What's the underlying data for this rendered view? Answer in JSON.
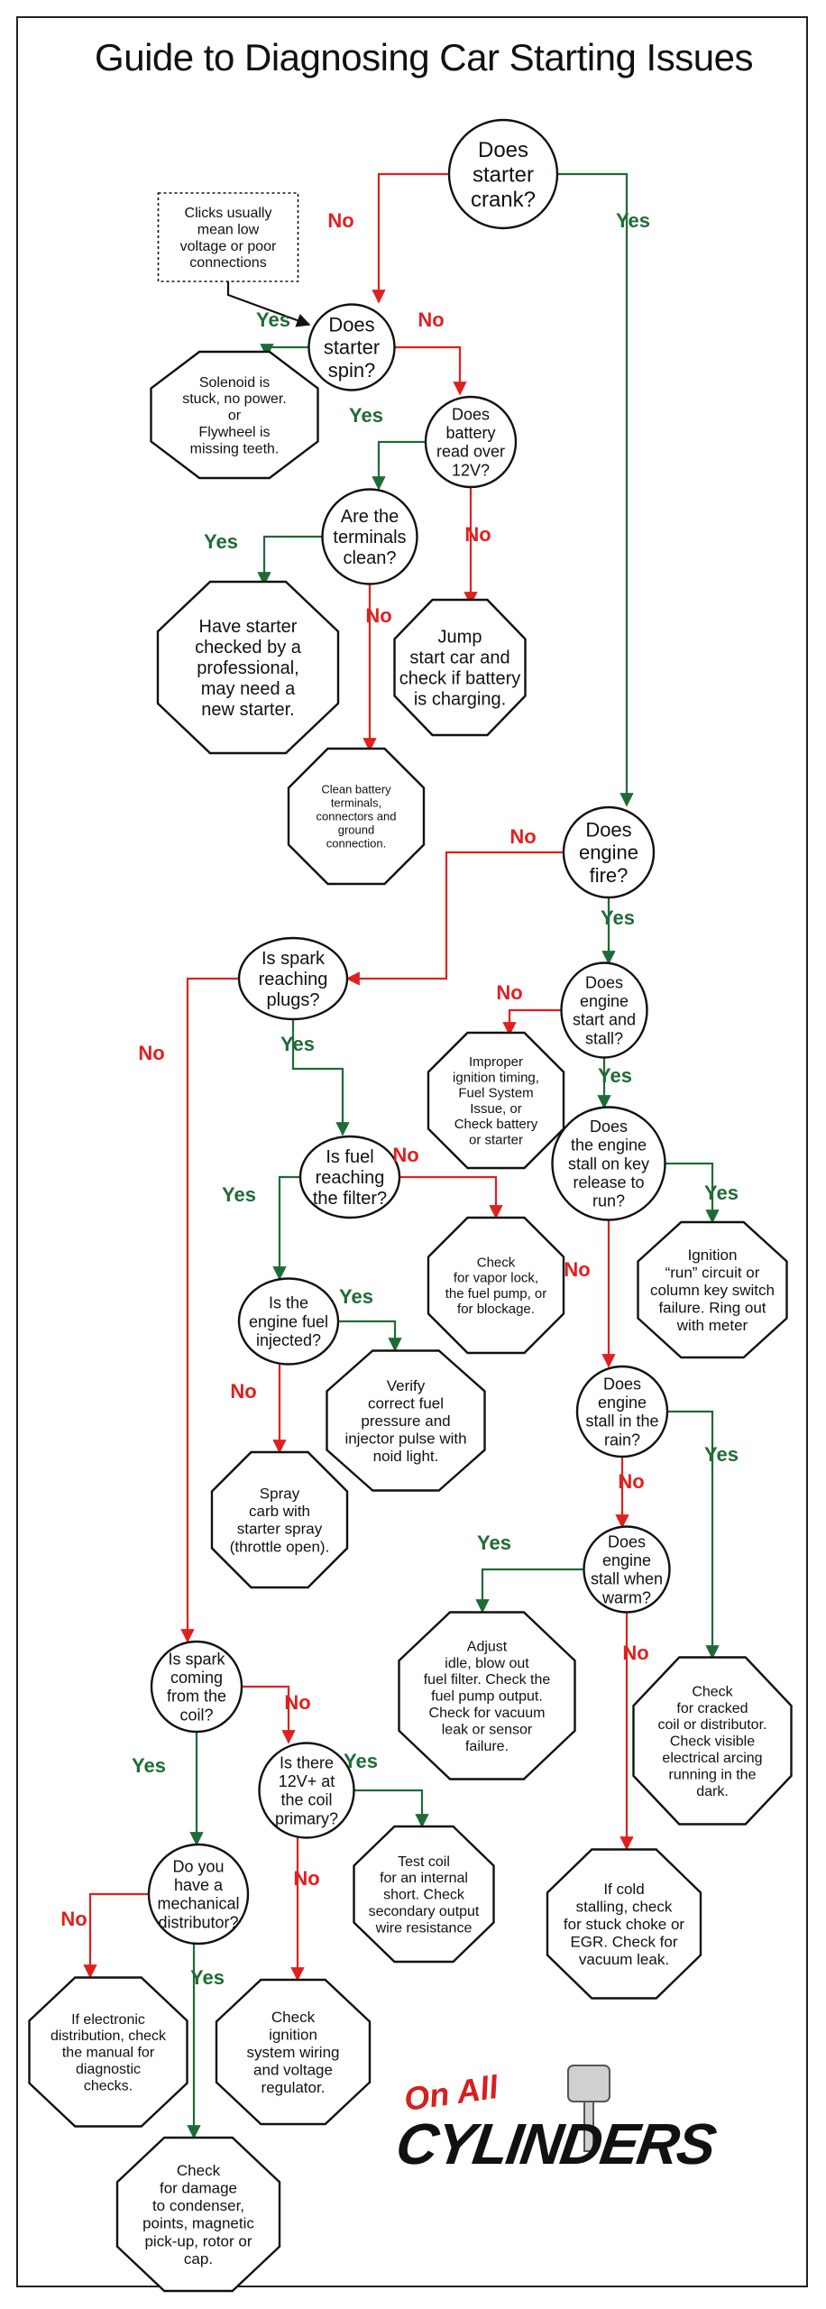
{
  "title": "Guide to Diagnosing Car Starting Issues",
  "nodes": {
    "crank": [
      "Does",
      "starter",
      "crank?"
    ],
    "clicks_note": [
      "Clicks usually",
      "mean low",
      "voltage or poor",
      "connections"
    ],
    "spin": [
      "Does",
      "starter",
      "spin?"
    ],
    "solenoid": [
      "Solenoid is",
      "stuck, no power.",
      "or",
      "Flywheel is",
      "missing teeth."
    ],
    "battery12": [
      "Does",
      "battery",
      "read over",
      "12V?"
    ],
    "terminals": [
      "Are the",
      "terminals",
      "clean?"
    ],
    "starter_check": [
      "Have starter",
      "checked by a",
      "professional,",
      "may need a",
      "new starter."
    ],
    "jump": [
      "Jump",
      "start car and",
      "check if battery",
      "is charging."
    ],
    "clean_battery": [
      "Clean battery",
      "terminals,",
      "connectors and",
      "ground",
      "connection."
    ],
    "fire": [
      "Does",
      "engine",
      "fire?"
    ],
    "spark_plugs": [
      "Is spark",
      "reaching",
      "plugs?"
    ],
    "start_stall": [
      "Does",
      "engine",
      "start and",
      "stall?"
    ],
    "improper": [
      "Improper",
      "ignition timing,",
      "Fuel System",
      "Issue, or",
      "Check battery",
      "or starter"
    ],
    "key_release": [
      "Does",
      "the engine",
      "stall on key",
      "release to",
      "run?"
    ],
    "fuel_filter": [
      "Is fuel",
      "reaching",
      "the filter?"
    ],
    "vapor": [
      "Check",
      "for vapor lock,",
      "the fuel pump, or",
      "for blockage."
    ],
    "ignition_run": [
      "Ignition",
      "“run” circuit or",
      "column key switch",
      "failure. Ring out",
      "with meter"
    ],
    "injected": [
      "Is the",
      "engine fuel",
      "injected?"
    ],
    "verify": [
      "Verify",
      "correct fuel",
      "pressure and",
      "injector pulse with",
      "noid light."
    ],
    "rain": [
      "Does",
      "engine",
      "stall in the",
      "rain?"
    ],
    "spray": [
      "Spray",
      "carb with",
      "starter spray",
      "(throttle open)."
    ],
    "warm": [
      "Does",
      "engine",
      "stall when",
      "warm?"
    ],
    "adjust": [
      "Adjust",
      "idle, blow out",
      "fuel filter.  Check the",
      "fuel pump output.",
      "Check for vacuum",
      "leak or sensor",
      "failure."
    ],
    "coil_spark": [
      "Is spark",
      "coming",
      "from the",
      "coil?"
    ],
    "cracked": [
      "Check",
      "for cracked",
      "coil or distributor.",
      "Check visible",
      "electrical arcing",
      "running in the",
      "dark."
    ],
    "coil12": [
      "Is there",
      "12V+ at",
      "the coil",
      "primary?"
    ],
    "test_coil": [
      "Test coil",
      "for an internal",
      "short.  Check",
      "secondary output",
      "wire resistance"
    ],
    "cold_stall": [
      "If cold",
      "stalling, check",
      "for stuck choke or",
      "EGR.  Check for",
      "vacuum leak."
    ],
    "mech_dist": [
      "Do you",
      "have a",
      "mechanical",
      "distributor?"
    ],
    "electronic": [
      "If electronic",
      "distribution, check",
      "the manual for",
      "diagnostic",
      "checks."
    ],
    "wiring": [
      "Check",
      "ignition",
      "system wiring",
      "and voltage",
      "regulator."
    ],
    "damage": [
      "Check",
      "for damage",
      "to condenser,",
      "points, magnetic",
      "pick-up, rotor or",
      "cap."
    ]
  },
  "edge_labels": {
    "yes": "Yes",
    "no": "No"
  },
  "logo": {
    "top": "On All",
    "bottom": "CYLINDERS"
  },
  "colors": {
    "yes": "#1f6b35",
    "no": "#e0201f",
    "ink": "#111111"
  }
}
